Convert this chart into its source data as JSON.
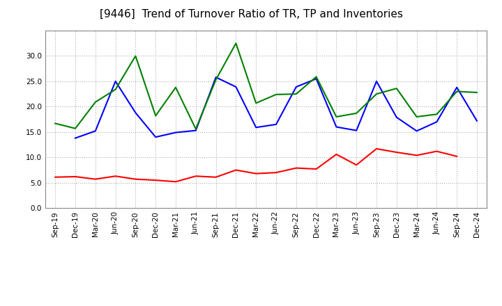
{
  "title": "[9446]  Trend of Turnover Ratio of TR, TP and Inventories",
  "x_labels": [
    "Sep-19",
    "Dec-19",
    "Mar-20",
    "Jun-20",
    "Sep-20",
    "Dec-20",
    "Mar-21",
    "Jun-21",
    "Sep-21",
    "Dec-21",
    "Mar-22",
    "Jun-22",
    "Sep-22",
    "Dec-22",
    "Mar-23",
    "Jun-23",
    "Sep-23",
    "Dec-23",
    "Mar-24",
    "Jun-24",
    "Sep-24",
    "Dec-24"
  ],
  "trade_receivables": [
    6.1,
    6.2,
    5.7,
    6.3,
    5.7,
    5.5,
    5.2,
    6.3,
    6.1,
    7.5,
    6.8,
    7.0,
    7.9,
    7.7,
    10.6,
    8.5,
    11.7,
    11.0,
    10.4,
    11.2,
    10.2,
    null
  ],
  "trade_payables": [
    null,
    13.8,
    15.2,
    25.0,
    18.8,
    14.0,
    14.9,
    15.3,
    25.8,
    23.9,
    15.9,
    16.5,
    23.9,
    25.5,
    16.0,
    15.3,
    25.0,
    17.9,
    15.2,
    17.0,
    23.8,
    17.2
  ],
  "inventories": [
    16.7,
    15.7,
    20.9,
    23.4,
    30.0,
    18.2,
    23.8,
    15.6,
    25.3,
    32.5,
    20.7,
    22.4,
    22.5,
    25.9,
    18.0,
    18.7,
    22.5,
    23.6,
    18.0,
    18.5,
    23.0,
    22.8
  ],
  "ylim": [
    0.0,
    35.0
  ],
  "yticks": [
    0.0,
    5.0,
    10.0,
    15.0,
    20.0,
    25.0,
    30.0
  ],
  "tr_color": "#ff0000",
  "tp_color": "#0000ff",
  "inv_color": "#008000",
  "bg_color": "#ffffff",
  "grid_color": "#999999",
  "title_fontsize": 11,
  "legend_fontsize": 8.5,
  "tick_fontsize": 7.5
}
